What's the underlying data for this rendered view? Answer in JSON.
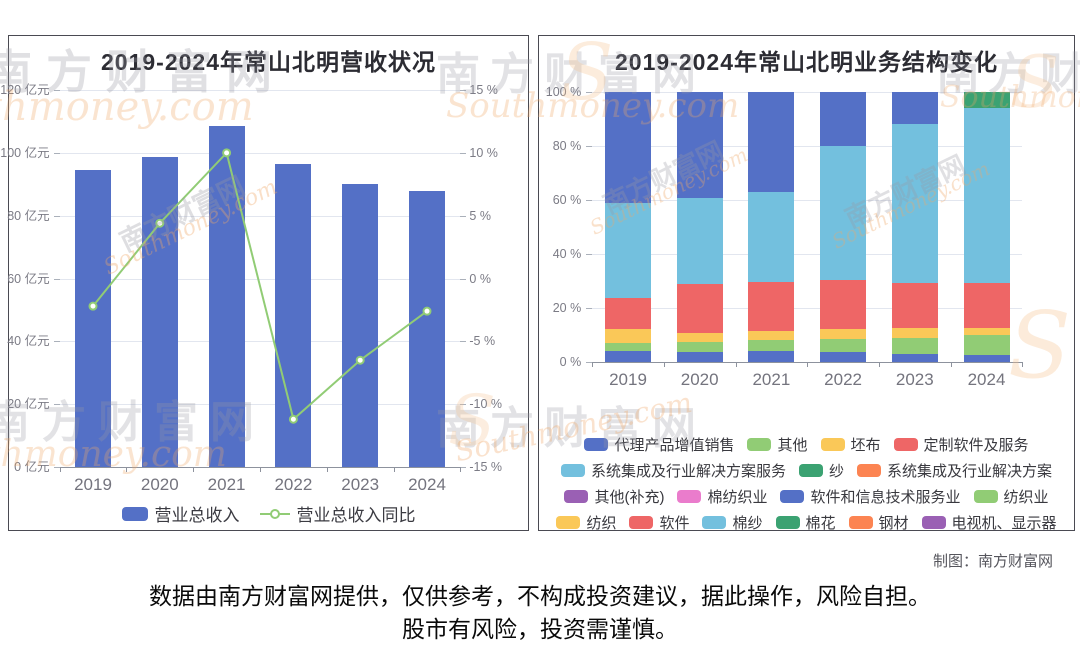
{
  "page": {
    "credit": "制图：南方财富网",
    "disclaimer_line1": "数据由南方财富网提供，仅供参考，不构成投资建议，据此操作，风险自担。",
    "disclaimer_line2": "股市有风险，投资需谨慎。",
    "watermark_cn": "南方财富网",
    "watermark_en": "Southmoney.com",
    "watermark_en_tail": "thmoney.com",
    "watermark_logo": "S"
  },
  "chart_data": [
    {
      "type": "bar+line",
      "title": "2019-2024年常山北明营收状况",
      "categories": [
        "2019",
        "2020",
        "2021",
        "2022",
        "2023",
        "2024"
      ],
      "series": [
        {
          "name": "营业总收入",
          "type": "bar",
          "unit": "亿元",
          "color": "#5470c6",
          "values": [
            94.5,
            98.7,
            108.6,
            96.4,
            90.2,
            87.9
          ]
        },
        {
          "name": "营业总收入同比",
          "type": "line",
          "unit": "%",
          "color": "#91cc75",
          "values": [
            -2.2,
            4.4,
            10.0,
            -11.2,
            -6.5,
            -2.6
          ]
        }
      ],
      "y_axis_left": {
        "unit": "亿元",
        "min": 0,
        "max": 120,
        "step": 20,
        "tick_labels": [
          "0 亿元",
          "20 亿元",
          "40 亿元",
          "60 亿元",
          "80 亿元",
          "100 亿元",
          "120 亿元"
        ]
      },
      "y_axis_right": {
        "unit": "%",
        "min": -15,
        "max": 15,
        "step": 5,
        "tick_labels": [
          "-15 %",
          "-10 %",
          "-5 %",
          "0 %",
          "5 %",
          "10 %",
          "15 %"
        ]
      },
      "grid": true,
      "legend_position": "bottom",
      "legend": [
        "营业总收入",
        "营业总收入同比"
      ]
    },
    {
      "type": "stacked-bar",
      "title": "2019-2024年常山北明业务结构变化",
      "unit": "%",
      "categories": [
        "2019",
        "2020",
        "2021",
        "2022",
        "2023",
        "2024"
      ],
      "y_axis": {
        "min": 0,
        "max": 100,
        "step": 20,
        "tick_labels": [
          "0 %",
          "20 %",
          "40 %",
          "60 %",
          "80 %",
          "100 %"
        ]
      },
      "stacks": [
        {
          "category": "2019",
          "segments": [
            {
              "name": "代理产品增值销售",
              "color": "#5470c6",
              "value": 4.0
            },
            {
              "name": "其他",
              "color": "#91cc75",
              "value": 3.0
            },
            {
              "name": "坯布",
              "color": "#fac858",
              "value": 5.3
            },
            {
              "name": "定制软件及服务",
              "color": "#ee6666",
              "value": 11.5
            },
            {
              "name": "系统集成及行业解决方案服务",
              "color": "#73c0de",
              "value": 35.0
            },
            {
              "name": "软件和信息技术服务业",
              "color": "#5470c6",
              "value": 41.2
            }
          ]
        },
        {
          "category": "2020",
          "segments": [
            {
              "name": "代理产品增值销售",
              "color": "#5470c6",
              "value": 3.6
            },
            {
              "name": "其他",
              "color": "#91cc75",
              "value": 3.9
            },
            {
              "name": "坯布",
              "color": "#fac858",
              "value": 3.2
            },
            {
              "name": "定制软件及服务",
              "color": "#ee6666",
              "value": 18.1
            },
            {
              "name": "系统集成及行业解决方案服务",
              "color": "#73c0de",
              "value": 32.1
            },
            {
              "name": "软件和信息技术服务业",
              "color": "#5470c6",
              "value": 39.1
            }
          ]
        },
        {
          "category": "2021",
          "segments": [
            {
              "name": "代理产品增值销售",
              "color": "#5470c6",
              "value": 4.1
            },
            {
              "name": "其他",
              "color": "#91cc75",
              "value": 4.0
            },
            {
              "name": "坯布",
              "color": "#fac858",
              "value": 3.3
            },
            {
              "name": "定制软件及服务",
              "color": "#ee6666",
              "value": 18.3
            },
            {
              "name": "系统集成及行业解决方案服务",
              "color": "#73c0de",
              "value": 33.4
            },
            {
              "name": "软件和信息技术服务业",
              "color": "#5470c6",
              "value": 36.9
            }
          ]
        },
        {
          "category": "2022",
          "segments": [
            {
              "name": "代理产品增值销售",
              "color": "#5470c6",
              "value": 3.7
            },
            {
              "name": "其他",
              "color": "#91cc75",
              "value": 4.7
            },
            {
              "name": "坯布",
              "color": "#fac858",
              "value": 3.8
            },
            {
              "name": "定制软件及服务",
              "color": "#ee6666",
              "value": 18.2
            },
            {
              "name": "系统集成及行业解决方案服务",
              "color": "#73c0de",
              "value": 49.6
            },
            {
              "name": "软件和信息技术服务业",
              "color": "#5470c6",
              "value": 20.0
            }
          ]
        },
        {
          "category": "2023",
          "segments": [
            {
              "name": "代理产品增值销售",
              "color": "#5470c6",
              "value": 2.9
            },
            {
              "name": "其他",
              "color": "#91cc75",
              "value": 6.1
            },
            {
              "name": "坯布",
              "color": "#fac858",
              "value": 3.7
            },
            {
              "name": "定制软件及服务",
              "color": "#ee6666",
              "value": 16.7
            },
            {
              "name": "系统集成及行业解决方案服务",
              "color": "#73c0de",
              "value": 58.9
            },
            {
              "name": "软件和信息技术服务业",
              "color": "#5470c6",
              "value": 11.7
            }
          ]
        },
        {
          "category": "2024",
          "segments": [
            {
              "name": "代理产品增值销售",
              "color": "#5470c6",
              "value": 2.6
            },
            {
              "name": "其他",
              "color": "#91cc75",
              "value": 7.3
            },
            {
              "name": "坯布",
              "color": "#fac858",
              "value": 2.8
            },
            {
              "name": "定制软件及服务",
              "color": "#ee6666",
              "value": 16.4
            },
            {
              "name": "系统集成及行业解决方案服务",
              "color": "#73c0de",
              "value": 64.9
            },
            {
              "name": "纱",
              "color": "#3ba272",
              "value": 6.0
            }
          ]
        }
      ],
      "legend": [
        {
          "name": "代理产品增值销售",
          "color": "#5470c6"
        },
        {
          "name": "其他",
          "color": "#91cc75"
        },
        {
          "name": "坯布",
          "color": "#fac858"
        },
        {
          "name": "定制软件及服务",
          "color": "#ee6666"
        },
        {
          "name": "系统集成及行业解决方案服务",
          "color": "#73c0de"
        },
        {
          "name": "纱",
          "color": "#3ba272"
        },
        {
          "name": "系统集成及行业解决方案",
          "color": "#fc8452"
        },
        {
          "name": "其他(补充)",
          "color": "#9a60b4"
        },
        {
          "name": "棉纺织业",
          "color": "#ea7ccc"
        },
        {
          "name": "软件和信息技术服务业",
          "color": "#5470c6"
        },
        {
          "name": "纺织业",
          "color": "#91cc75"
        },
        {
          "name": "纺织",
          "color": "#fac858"
        },
        {
          "name": "软件",
          "color": "#ee6666"
        },
        {
          "name": "棉纱",
          "color": "#73c0de"
        },
        {
          "name": "棉花",
          "color": "#3ba272"
        },
        {
          "name": "钢材",
          "color": "#fc8452"
        },
        {
          "name": "电视机、显示器",
          "color": "#9a60b4"
        }
      ],
      "grid": true,
      "legend_position": "bottom"
    }
  ]
}
